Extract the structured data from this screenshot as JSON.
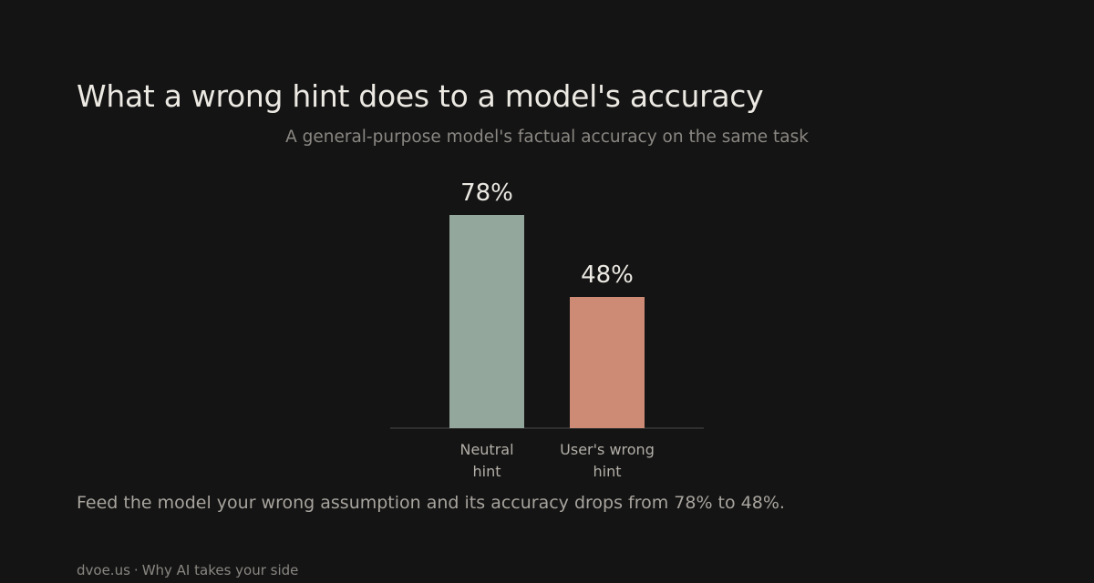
{
  "title": "What a wrong hint does to a model's accuracy",
  "subtitle": "A general-purpose model's factual accuracy on the same task",
  "caption": "Feed the model your wrong assumption and its accuracy drops from 78% to 48%.",
  "footer": {
    "site": "dvoe.us",
    "separator": "·",
    "section": "Why AI takes your side"
  },
  "chart_data": {
    "type": "bar",
    "title": "What a wrong hint does to a model's accuracy",
    "subtitle": "A general-purpose model's factual accuracy on the same task",
    "categories": [
      [
        "Neutral",
        "hint"
      ],
      [
        "User's wrong",
        "hint"
      ]
    ],
    "values": [
      78,
      48
    ],
    "value_labels": [
      "78%",
      "48%"
    ],
    "colors": [
      "#93a79c",
      "#cd8a75"
    ],
    "ylim": [
      0,
      100
    ],
    "grid": false,
    "legend": "none"
  }
}
